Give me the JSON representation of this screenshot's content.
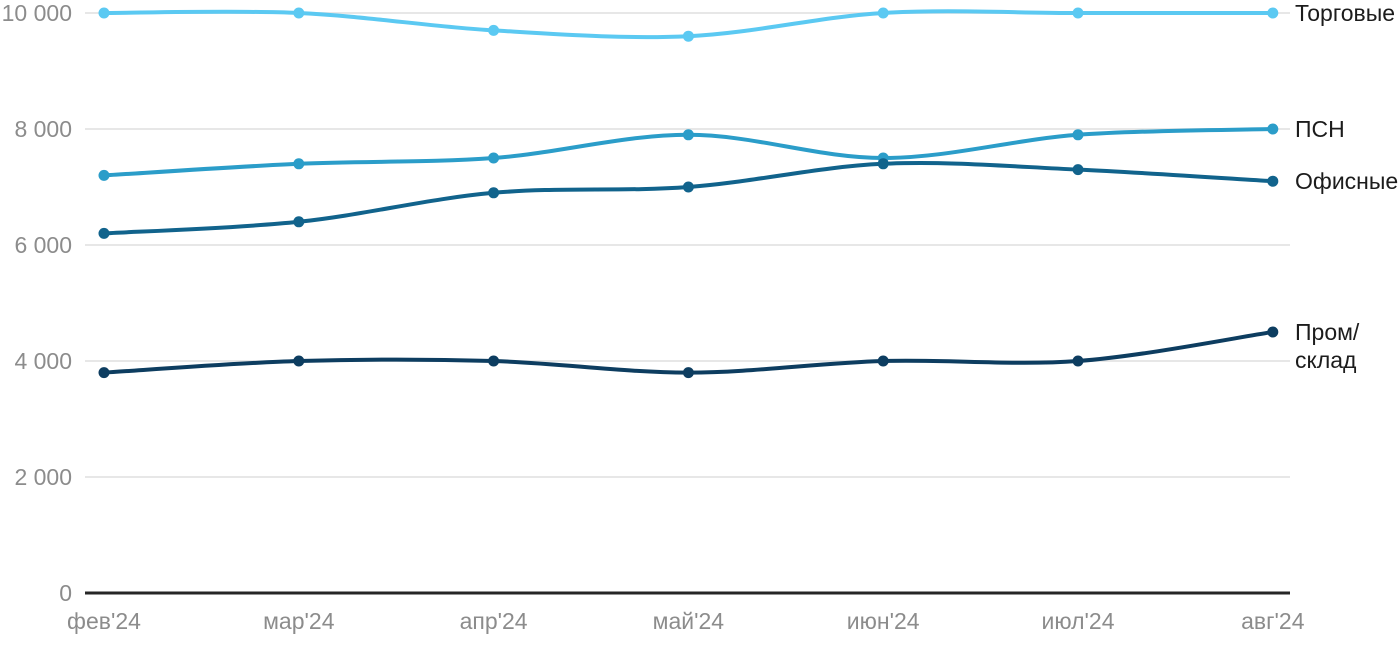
{
  "chart_data": {
    "type": "line",
    "title": "",
    "x_categories": [
      "фев'24",
      "мар'24",
      "апр'24",
      "май'24",
      "июн'24",
      "июл'24",
      "авг'24"
    ],
    "y_ticks": [
      {
        "value": 0,
        "label": "0"
      },
      {
        "value": 2000,
        "label": "2 000"
      },
      {
        "value": 4000,
        "label": "4 000"
      },
      {
        "value": 6000,
        "label": "6 000"
      },
      {
        "value": 8000,
        "label": "8 000"
      },
      {
        "value": 10000,
        "label": "10 000"
      }
    ],
    "ylim": [
      0,
      10224
    ],
    "grid": true,
    "legend_position": "right-of-last-point",
    "series": [
      {
        "name": "Торговые",
        "label_lines": [
          "Торговые"
        ],
        "color": "#5BC9F2",
        "values": [
          10000,
          10000,
          9700,
          9600,
          10000,
          10000,
          10000
        ]
      },
      {
        "name": "ПСН",
        "label_lines": [
          "ПСН"
        ],
        "color": "#2B9DC9",
        "values": [
          7200,
          7400,
          7500,
          7900,
          7500,
          7900,
          8000
        ]
      },
      {
        "name": "Офисные",
        "label_lines": [
          "Офисные"
        ],
        "color": "#11638C",
        "values": [
          6200,
          6400,
          6900,
          7000,
          7400,
          7300,
          7100
        ]
      },
      {
        "name": "Пром/склад",
        "label_lines": [
          "Пром/",
          "склад"
        ],
        "color": "#0D3D60",
        "values": [
          3800,
          4000,
          4000,
          3800,
          4000,
          4000,
          4500
        ]
      }
    ],
    "style": {
      "grid_color": "#E7E7E7",
      "axis_color": "#262626",
      "tick_text_color": "#8C8C8C",
      "legend_text_color": "#1C1C1C"
    }
  }
}
